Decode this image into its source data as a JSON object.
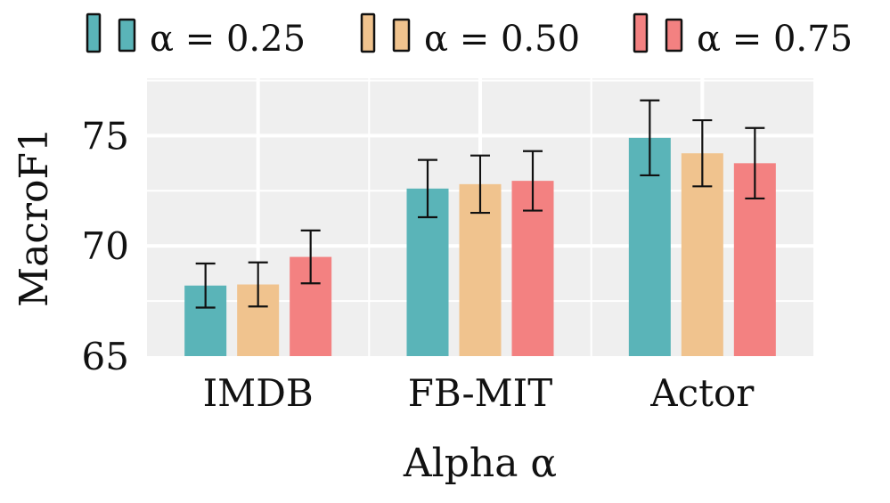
{
  "chart_data": {
    "type": "bar",
    "title": "",
    "xlabel": "Alpha α",
    "ylabel": "MacroF1",
    "categories": [
      "IMDB",
      "FB-MIT",
      "Actor"
    ],
    "ylim": [
      65,
      77.6
    ],
    "yticks": [
      "65",
      "70",
      "75"
    ],
    "grid": true,
    "legend_position": "top",
    "series": [
      {
        "name": "α = 0.25",
        "color": "#5ab4b8",
        "values": [
          68.2,
          72.6,
          74.9
        ],
        "errors": [
          1.0,
          1.3,
          1.7
        ]
      },
      {
        "name": "α = 0.50",
        "color": "#f0c38e",
        "values": [
          68.25,
          72.8,
          74.2
        ],
        "errors": [
          1.0,
          1.3,
          1.5
        ]
      },
      {
        "name": "α = 0.75",
        "color": "#f38181",
        "values": [
          69.5,
          72.95,
          73.75
        ],
        "errors": [
          1.2,
          1.35,
          1.6
        ]
      }
    ]
  }
}
